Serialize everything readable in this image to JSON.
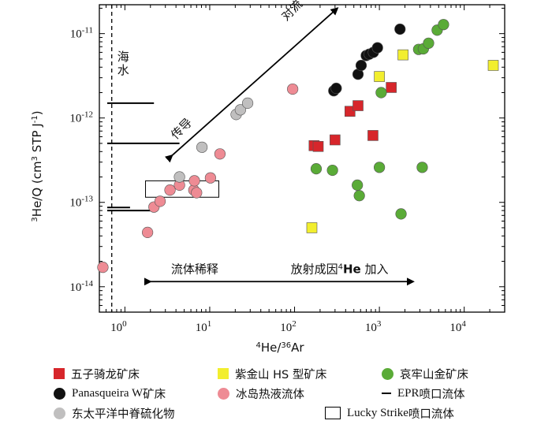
{
  "chart_data": {
    "type": "scatter",
    "xlabel_parts": [
      "4",
      "He/",
      "36",
      "Ar"
    ],
    "ylabel_parts": [
      "3",
      "He/Q (cm",
      "3",
      " STP J",
      "-1",
      ")"
    ],
    "x_scale": "log",
    "y_scale": "log",
    "xlim": [
      0.5,
      30000
    ],
    "ylim": [
      5e-15,
      2.2e-11
    ],
    "x_ticks": [
      {
        "value": 1,
        "base": "10",
        "exp": "0"
      },
      {
        "value": 10,
        "base": "10",
        "exp": "1"
      },
      {
        "value": 100,
        "base": "10",
        "exp": "2"
      },
      {
        "value": 1000,
        "base": "10",
        "exp": "3"
      },
      {
        "value": 10000,
        "base": "10",
        "exp": "4"
      }
    ],
    "y_ticks": [
      {
        "value": 1e-14,
        "base": "10",
        "exp": "-14"
      },
      {
        "value": 1e-13,
        "base": "10",
        "exp": "-13"
      },
      {
        "value": 1e-12,
        "base": "10",
        "exp": "-12"
      },
      {
        "value": 1e-11,
        "base": "10",
        "exp": "-11"
      }
    ],
    "seawater_line_x": 0.7,
    "seawater_label": "海水",
    "annotations": {
      "convection": "对流",
      "conduction": "传导",
      "dilution": "流体稀释",
      "radiogenic_prefix": "放射成因",
      "radiogenic_sup": "4",
      "radiogenic_he": "He",
      "radiogenic_suffix": " 加入"
    },
    "series": [
      {
        "name": "五子骑龙矿床",
        "marker": "square",
        "color": "#d7262b",
        "points": [
          [
            170,
            4.7e-13
          ],
          [
            190,
            4.6e-13
          ],
          [
            300,
            5.5e-13
          ],
          [
            450,
            1.2e-12
          ],
          [
            560,
            1.4e-12
          ],
          [
            840,
            6.2e-13
          ],
          [
            1380,
            2.3e-12
          ]
        ]
      },
      {
        "name": "紫金山 HS 型矿床",
        "marker": "square",
        "color": "#f2ee2e",
        "points": [
          [
            160,
            5e-14
          ],
          [
            1000,
            3.1e-12
          ],
          [
            1900,
            5.6e-12
          ],
          [
            22000,
            4.2e-12
          ]
        ]
      },
      {
        "name": "哀牢山金矿床",
        "marker": "circle",
        "color": "#5aab37",
        "points": [
          [
            180,
            2.5e-13
          ],
          [
            280,
            2.4e-13
          ],
          [
            550,
            1.6e-13
          ],
          [
            580,
            1.2e-13
          ],
          [
            1000,
            2.6e-13
          ],
          [
            1050,
            2e-12
          ],
          [
            1800,
            7.3e-14
          ],
          [
            3200,
            2.6e-13
          ],
          [
            2900,
            6.5e-12
          ],
          [
            3300,
            6.6e-12
          ],
          [
            3800,
            7.7e-12
          ],
          [
            4800,
            1.1e-11
          ],
          [
            5700,
            1.28e-11
          ]
        ]
      },
      {
        "name": "Panasqueira W矿床",
        "marker": "circle",
        "color": "#111111",
        "points": [
          [
            290,
            2.1e-12
          ],
          [
            310,
            2.25e-12
          ],
          [
            560,
            3.3e-12
          ],
          [
            610,
            4.2e-12
          ],
          [
            700,
            5.5e-12
          ],
          [
            760,
            5.7e-12
          ],
          [
            850,
            6e-12
          ],
          [
            950,
            6.8e-12
          ],
          [
            1750,
            1.13e-11
          ]
        ]
      },
      {
        "name": "冰岛热液流体",
        "marker": "circle",
        "color": "#ee8b94",
        "points": [
          [
            0.55,
            1.7e-14
          ],
          [
            1.85,
            4.4e-14
          ],
          [
            2.2,
            8.8e-14
          ],
          [
            2.6,
            1.03e-13
          ],
          [
            3.4,
            1.4e-13
          ],
          [
            4.4,
            1.6e-13
          ],
          [
            6.5,
            1.4e-13
          ],
          [
            6.6,
            1.8e-13
          ],
          [
            7,
            1.3e-13
          ],
          [
            10.2,
            1.95e-13
          ],
          [
            13.2,
            3.75e-13
          ],
          [
            95,
            2.2e-12
          ]
        ]
      },
      {
        "name": "东太平洋中脊硫化物",
        "marker": "circle",
        "color": "#c0bfbf",
        "points": [
          [
            4.4,
            2e-13
          ],
          [
            8.1,
            4.5e-13
          ],
          [
            20.5,
            1.1e-12
          ],
          [
            23,
            1.25e-12
          ],
          [
            28,
            1.5e-12
          ]
        ]
      }
    ],
    "epr_levels": [
      {
        "y": 1.5e-12,
        "x_end": 2.2
      },
      {
        "y": 5e-13,
        "x_end": 4.4
      },
      {
        "y": 8.7e-14,
        "x_end": 1.15
      },
      {
        "y": 8e-14,
        "x_end": 2.2
      }
    ],
    "lucky_strike_box": {
      "x": [
        1.75,
        12.8
      ],
      "y": [
        1.15e-13,
        1.8e-13
      ]
    },
    "legend": [
      {
        "label": "五子骑龙矿床",
        "symbol": "square",
        "color": "#d7262b"
      },
      {
        "label": "紫金山 HS 型矿床",
        "symbol": "square",
        "color": "#f2ee2e"
      },
      {
        "label": "哀牢山金矿床",
        "symbol": "circle",
        "color": "#5aab37"
      },
      {
        "label_latin": "Panasqueira W",
        "label_cjk": "矿床",
        "symbol": "circle",
        "color": "#111111"
      },
      {
        "label": "冰岛热液流体",
        "symbol": "circle",
        "color": "#ee8b94"
      },
      {
        "label_latin": "EPR",
        "label_cjk": " 喷口流体",
        "symbol": "dash",
        "color": "#000000"
      },
      {
        "label": "东太平洋中脊硫化物",
        "symbol": "circle",
        "color": "#c0bfbf"
      },
      {
        "label_latin": "Lucky Strike",
        "label_cjk": " 喷口流体",
        "symbol": "box",
        "color": "#ffffff"
      }
    ]
  }
}
